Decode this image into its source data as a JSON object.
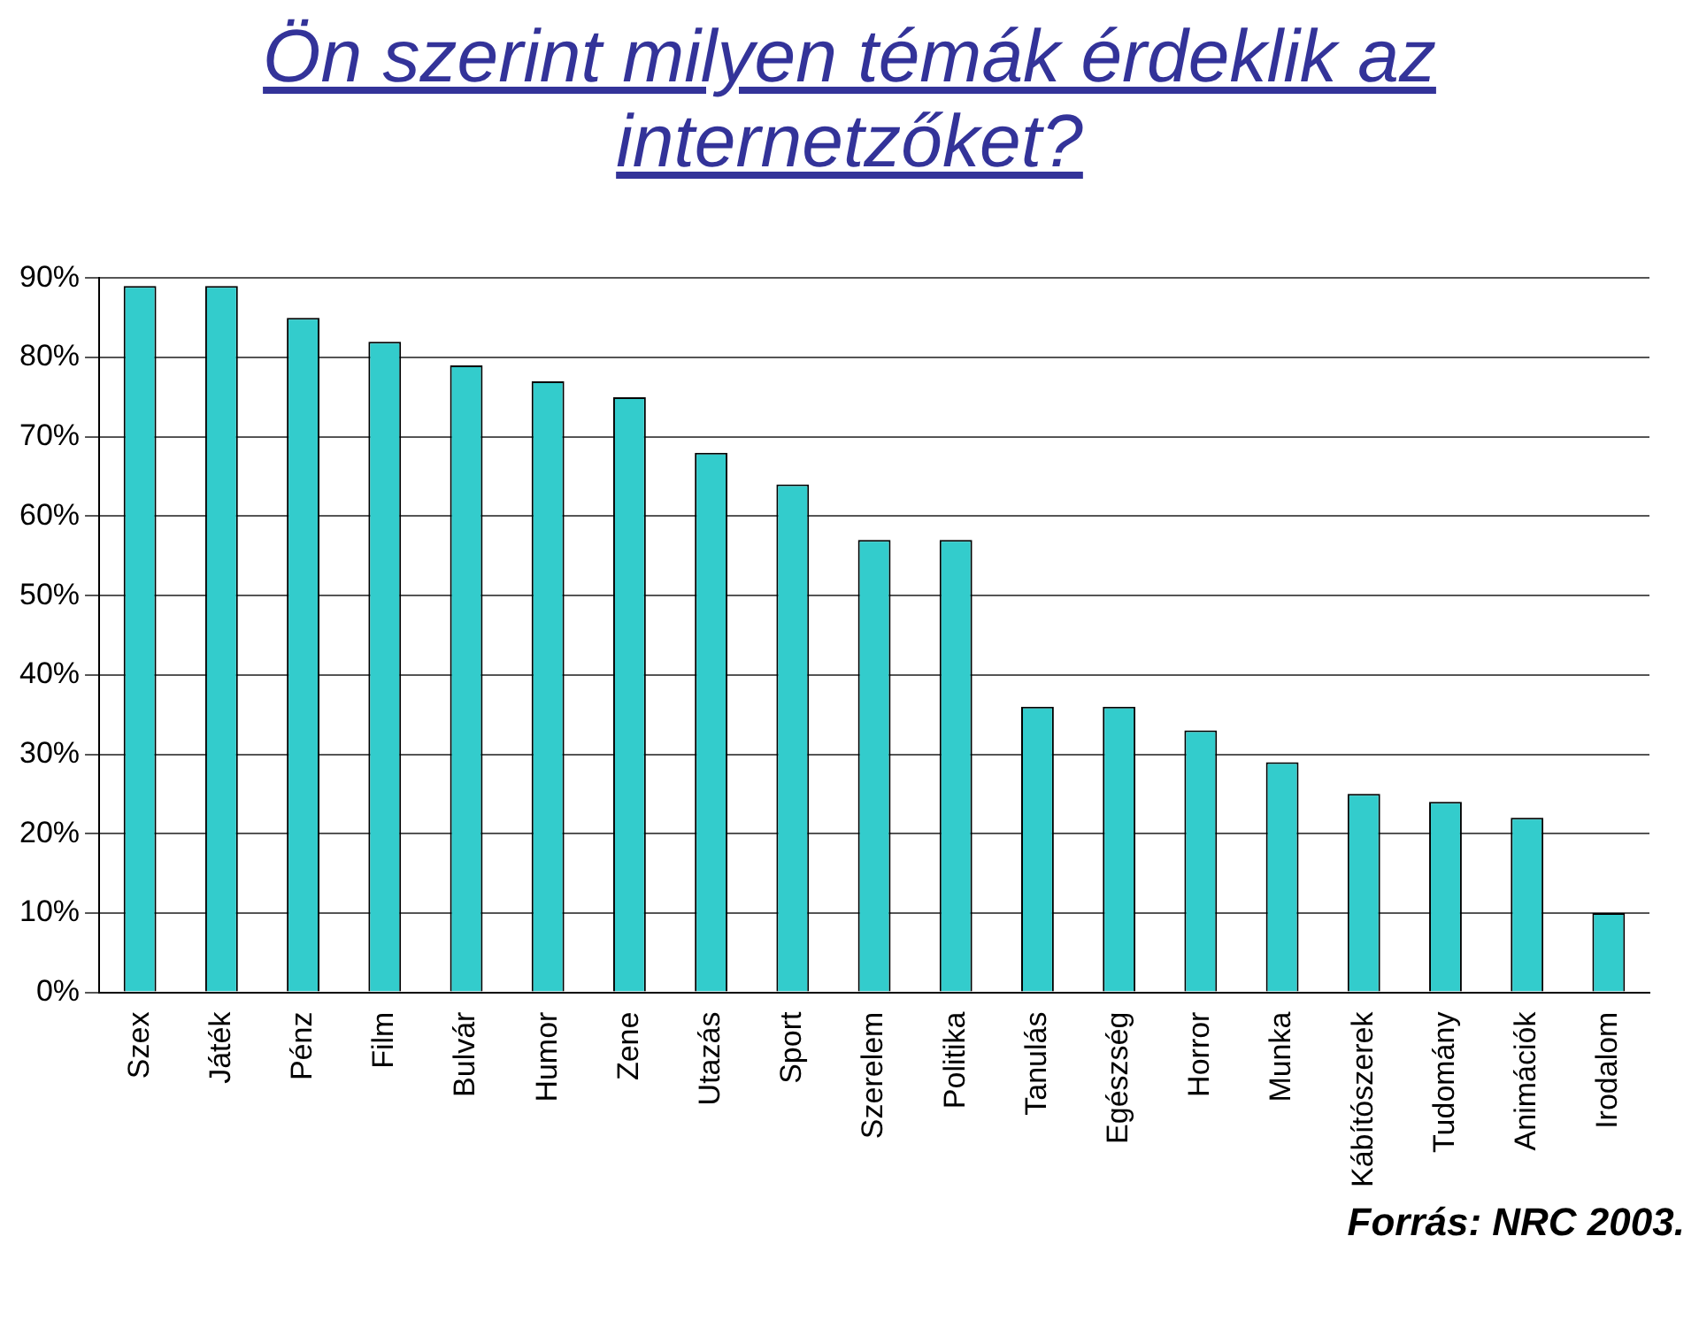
{
  "chart_data": {
    "type": "bar",
    "title": "Ön szerint milyen témák érdeklik az internetzőket?",
    "categories": [
      "Szex",
      "Játék",
      "Pénz",
      "Film",
      "Bulvár",
      "Humor",
      "Zene",
      "Utazás",
      "Sport",
      "Szerelem",
      "Politika",
      "Tanulás",
      "Egészség",
      "Horror",
      "Munka",
      "Kábítószerek",
      "Tudomány",
      "Animációk",
      "Irodalom"
    ],
    "values": [
      89,
      89,
      85,
      82,
      79,
      77,
      75,
      68,
      64,
      57,
      57,
      36,
      36,
      33,
      29,
      25,
      24,
      22,
      10
    ],
    "color": "#33cccc",
    "ylim": [
      0,
      90
    ],
    "yticks": [
      {
        "value": 0,
        "label": "0%"
      },
      {
        "value": 10,
        "label": "10%"
      },
      {
        "value": 20,
        "label": "20%"
      },
      {
        "value": 30,
        "label": "30%"
      },
      {
        "value": 40,
        "label": "40%"
      },
      {
        "value": 50,
        "label": "50%"
      },
      {
        "value": 60,
        "label": "60%"
      },
      {
        "value": 70,
        "label": "70%"
      },
      {
        "value": 80,
        "label": "80%"
      },
      {
        "value": 90,
        "label": "90%"
      }
    ],
    "grid": "y",
    "annotations": [
      "Forrás: NRC 2003."
    ]
  }
}
